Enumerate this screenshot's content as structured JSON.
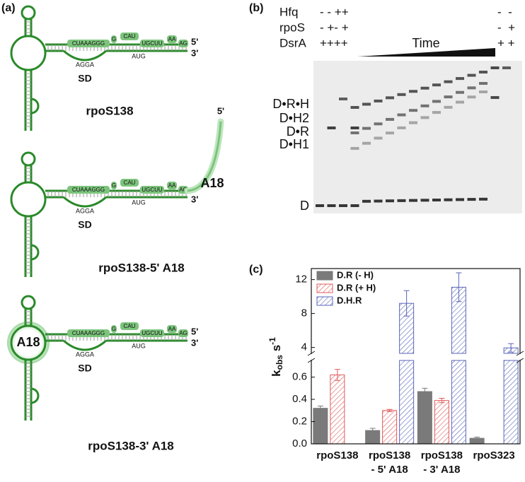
{
  "panel_labels": {
    "a": "(a)",
    "b": "(b)",
    "c": "(c)"
  },
  "rna": {
    "stem_seq": "CUAAAGGG",
    "bulge": "G",
    "loop1": "CAU",
    "mid_seq": "UGCUU",
    "loop2": "AA",
    "end_seq": "AG",
    "sd_seq": "AGGA",
    "start_codon": "AUG",
    "sd": "SD",
    "five": "5'",
    "three": "3'",
    "a18": "A18"
  },
  "constructs": [
    "rpoS138",
    "rpoS138-5' A18",
    "rpoS138-3' A18"
  ],
  "gel": {
    "rows": [
      {
        "name": "Hfq",
        "left": "- - ++",
        "right": "-  -"
      },
      {
        "name": "rpoS",
        "left": "- +- +",
        "right": "-  +"
      },
      {
        "name": "DsrA",
        "left": "++++",
        "right": "+ +"
      }
    ],
    "time": "Time",
    "bands": [
      "D•R•H",
      "D•H2",
      "D•R",
      "D•H1",
      "D"
    ]
  },
  "chart_data": {
    "type": "bar",
    "ylabel": {
      "main": "k",
      "sub": "obs",
      "unit": " s",
      "sup": "-1"
    },
    "categories": [
      [
        "rpoS138"
      ],
      [
        "rpoS138",
        "- 5' A18"
      ],
      [
        "rpoS138",
        "- 3' A18"
      ],
      [
        "rpoS323"
      ]
    ],
    "series": [
      {
        "name": "D.R (- H)",
        "color": "#7a7a7a",
        "hatch": false,
        "values": [
          0.32,
          0.12,
          0.47,
          0.05
        ],
        "errors": [
          0.02,
          0.02,
          0.03,
          0.01
        ]
      },
      {
        "name": "D.R (+ H)",
        "color": "#e05a5a",
        "hatch": true,
        "values": [
          0.62,
          0.3,
          0.39,
          null
        ],
        "errors": [
          0.05,
          0.01,
          0.02,
          null
        ]
      },
      {
        "name": "D.H.R",
        "color": "#5a66b8",
        "hatch": true,
        "values": [
          null,
          9.2,
          11.1,
          3.95
        ],
        "errors": [
          null,
          1.5,
          1.7,
          0.5
        ]
      }
    ],
    "ylim": [
      0,
      0.75
    ],
    "yticks": [
      {
        "value": 0,
        "label": "0.0"
      },
      {
        "value": 0.2,
        "label": "0.2"
      },
      {
        "value": 0.4,
        "label": "0.4"
      },
      {
        "value": 0.6,
        "label": "0.6"
      }
    ],
    "ylim_upper": [
      3.3,
      13.3
    ],
    "yticks_upper": [
      4,
      8,
      12
    ],
    "legend": "upper-left"
  }
}
